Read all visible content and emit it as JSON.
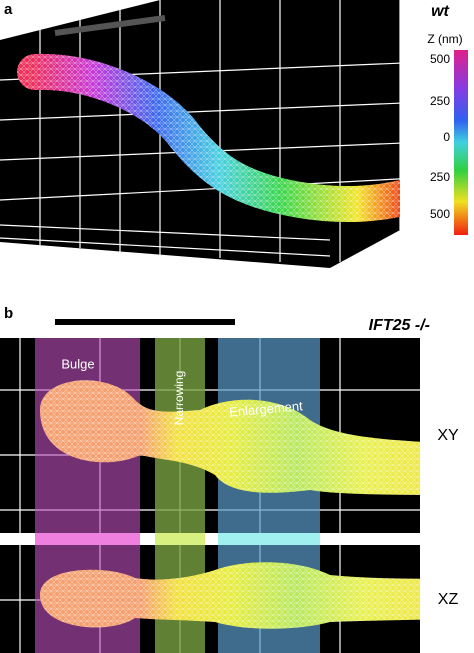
{
  "panel_a": {
    "label": "a",
    "title": "wt",
    "colorbar": {
      "title": "Z (nm)",
      "ticks": [
        "500",
        "250",
        "0",
        "250",
        "500"
      ]
    }
  },
  "panel_b": {
    "label": "b",
    "title": "IFT25 -/-",
    "regions": [
      "Bulge",
      "Narrowing",
      "Enlargement"
    ],
    "views": [
      "XY",
      "XZ"
    ]
  }
}
